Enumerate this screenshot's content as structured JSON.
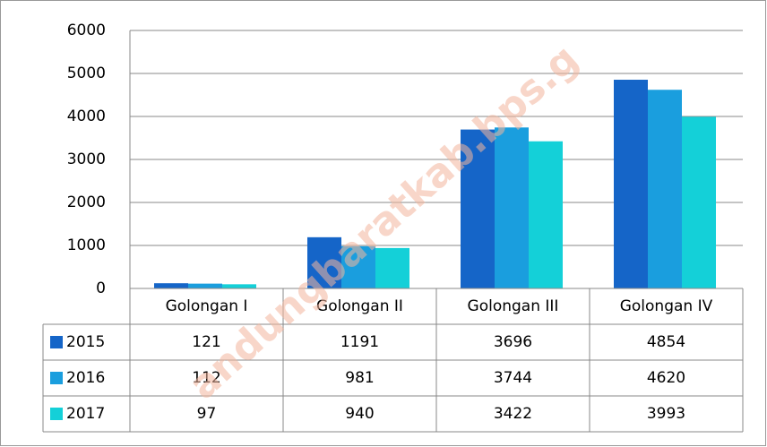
{
  "chart_data": {
    "type": "bar",
    "categories": [
      "Golongan I",
      "Golongan II",
      "Golongan III",
      "Golongan IV"
    ],
    "series": [
      {
        "name": "2015",
        "color": "#1565c8",
        "values": [
          121,
          1191,
          3696,
          4854
        ]
      },
      {
        "name": "2016",
        "color": "#1a9ede",
        "values": [
          112,
          981,
          3744,
          4620
        ]
      },
      {
        "name": "2017",
        "color": "#14d0d8",
        "values": [
          97,
          940,
          3422,
          3993
        ]
      }
    ],
    "ylim": [
      0,
      6000
    ],
    "yticks": [
      0,
      1000,
      2000,
      3000,
      4000,
      5000,
      6000
    ],
    "grid": true,
    "watermark": "andungbaratkab.bps.g"
  }
}
